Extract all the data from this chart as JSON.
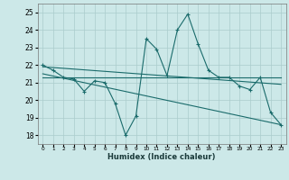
{
  "title": "",
  "xlabel": "Humidex (Indice chaleur)",
  "ylabel": "",
  "xlim": [
    -0.5,
    23.5
  ],
  "ylim": [
    17.5,
    25.5
  ],
  "yticks": [
    18,
    19,
    20,
    21,
    22,
    23,
    24,
    25
  ],
  "xticks": [
    0,
    1,
    2,
    3,
    4,
    5,
    6,
    7,
    8,
    9,
    10,
    11,
    12,
    13,
    14,
    15,
    16,
    17,
    18,
    19,
    20,
    21,
    22,
    23
  ],
  "bg_color": "#cce8e8",
  "grid_color": "#aacccc",
  "line_color": "#1a6b6b",
  "series1_x": [
    0,
    1,
    2,
    3,
    4,
    5,
    6,
    7,
    8,
    9,
    10,
    11,
    12,
    13,
    14,
    15,
    16,
    17,
    18,
    19,
    20,
    21,
    22,
    23
  ],
  "series1_y": [
    22.0,
    21.7,
    21.3,
    21.2,
    20.5,
    21.1,
    21.0,
    19.8,
    18.0,
    19.1,
    23.5,
    22.9,
    21.4,
    24.0,
    24.9,
    23.2,
    21.7,
    21.3,
    21.3,
    20.8,
    20.6,
    21.3,
    19.3,
    18.6
  ],
  "series2_x": [
    0,
    23
  ],
  "series2_y": [
    21.3,
    21.3
  ],
  "series3_x": [
    0,
    23
  ],
  "series3_y": [
    21.9,
    20.9
  ],
  "series4_x": [
    0,
    23
  ],
  "series4_y": [
    21.5,
    18.6
  ]
}
